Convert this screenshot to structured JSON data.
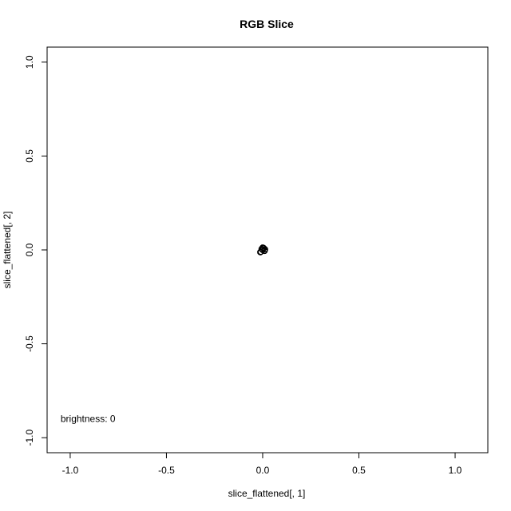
{
  "chart_data": {
    "type": "scatter",
    "title": "RGB Slice",
    "xlabel": "slice_flattened[, 1]",
    "ylabel": "slice_flattened[, 2]",
    "xlim": [
      -1.12,
      1.17
    ],
    "ylim": [
      -1.08,
      1.08
    ],
    "x_ticks": [
      -1.0,
      -0.5,
      0.0,
      0.5,
      1.0
    ],
    "x_tick_labels": [
      "-1.0",
      "-0.5",
      "0.0",
      "0.5",
      "1.0"
    ],
    "y_ticks": [
      -1.0,
      -0.5,
      0.0,
      0.5,
      1.0
    ],
    "y_tick_labels": [
      "-1.0",
      "-0.5",
      "0.0",
      "0.5",
      "1.0"
    ],
    "grid": false,
    "point_color": "#000000",
    "annotation": {
      "text": "brightness:  0",
      "x": -1.05,
      "y": -0.9
    },
    "points": [
      {
        "x": 0.0,
        "y": 0.0
      },
      {
        "x": -0.01,
        "y": -0.01
      },
      {
        "x": 0.01,
        "y": -0.005
      },
      {
        "x": 0.005,
        "y": 0.01
      },
      {
        "x": -0.005,
        "y": 0.005
      },
      {
        "x": 0.0,
        "y": 0.012
      },
      {
        "x": 0.012,
        "y": 0.003
      },
      {
        "x": -0.012,
        "y": -0.012
      }
    ]
  }
}
